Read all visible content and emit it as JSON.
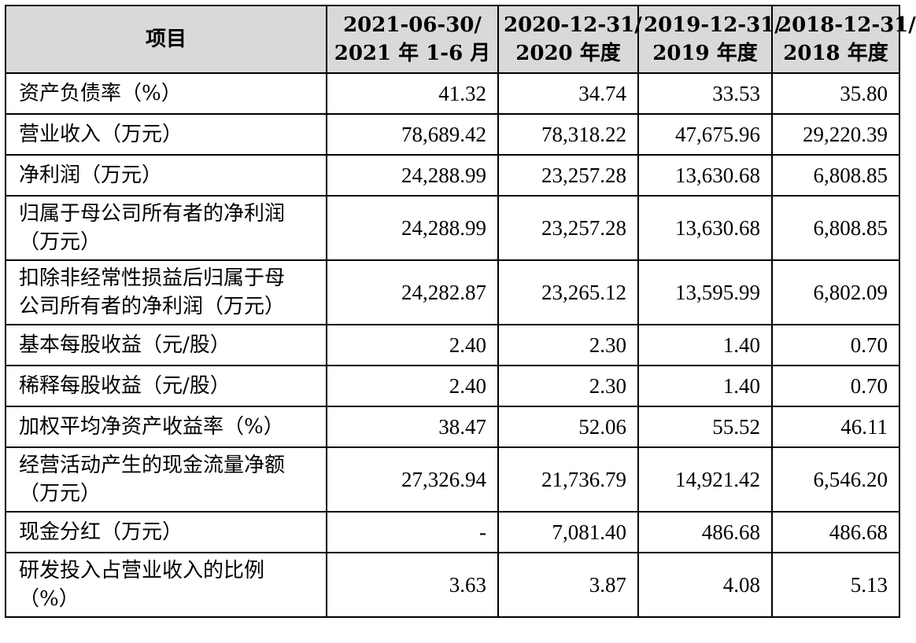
{
  "table": {
    "header": {
      "item": "项目",
      "periods": [
        {
          "line1": "2021-06-30/",
          "line2": "2021 年 1-6 月"
        },
        {
          "line1": "2020-12-31/",
          "line2": "2020 年度"
        },
        {
          "line1": "2019-12-31/",
          "line2": "2019 年度"
        },
        {
          "line1": "2018-12-31/",
          "line2": "2018 年度"
        }
      ]
    },
    "rows": [
      {
        "label": [
          "资产负债率（%）"
        ],
        "values": [
          "41.32",
          "34.74",
          "33.53",
          "35.80"
        ]
      },
      {
        "label": [
          "营业收入（万元）"
        ],
        "values": [
          "78,689.42",
          "78,318.22",
          "47,675.96",
          "29,220.39"
        ]
      },
      {
        "label": [
          "净利润（万元）"
        ],
        "values": [
          "24,288.99",
          "23,257.28",
          "13,630.68",
          "6,808.85"
        ]
      },
      {
        "label": [
          "归属于母公司所有者的净利润",
          "（万元）"
        ],
        "values": [
          "24,288.99",
          "23,257.28",
          "13,630.68",
          "6,808.85"
        ]
      },
      {
        "label": [
          "扣除非经常性损益后归属于母",
          "公司所有者的净利润（万元）"
        ],
        "values": [
          "24,282.87",
          "23,265.12",
          "13,595.99",
          "6,802.09"
        ]
      },
      {
        "label": [
          "基本每股收益（元/股）"
        ],
        "values": [
          "2.40",
          "2.30",
          "1.40",
          "0.70"
        ]
      },
      {
        "label": [
          "稀释每股收益（元/股）"
        ],
        "values": [
          "2.40",
          "2.30",
          "1.40",
          "0.70"
        ]
      },
      {
        "label": [
          "加权平均净资产收益率（%）"
        ],
        "values": [
          "38.47",
          "52.06",
          "55.52",
          "46.11"
        ]
      },
      {
        "label": [
          "经营活动产生的现金流量净额",
          "（万元）"
        ],
        "values": [
          "27,326.94",
          "21,736.79",
          "14,921.42",
          "6,546.20"
        ]
      },
      {
        "label": [
          "现金分红（万元）"
        ],
        "values": [
          "-",
          "7,081.40",
          "486.68",
          "486.68"
        ]
      },
      {
        "label": [
          "研发投入占营业收入的比例",
          "（%）"
        ],
        "values": [
          "3.63",
          "3.87",
          "4.08",
          "5.13"
        ]
      }
    ]
  }
}
